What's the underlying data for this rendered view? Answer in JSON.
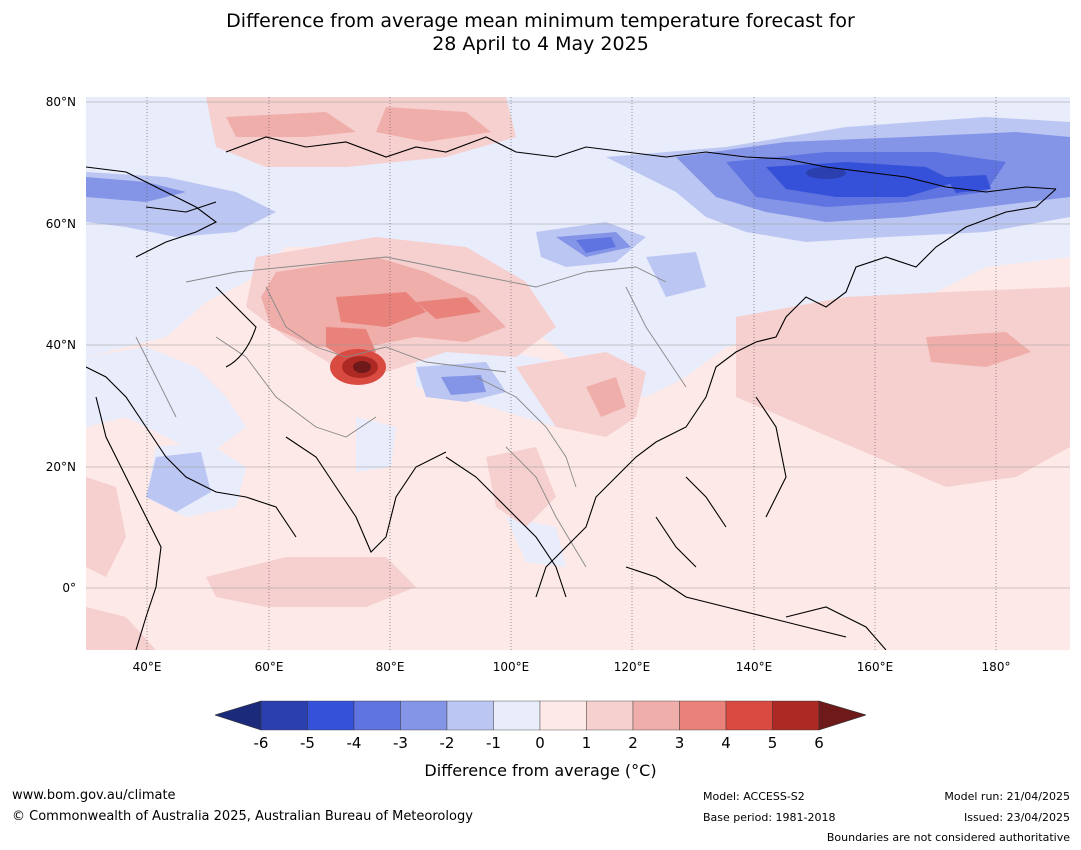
{
  "title_line1": "Difference from average mean minimum temperature forecast for",
  "title_line2": "28 April to 4 May 2025",
  "lat_labels": [
    "80°N",
    "60°N",
    "40°N",
    "20°N",
    "0°"
  ],
  "lon_labels": [
    "40°E",
    "60°E",
    "80°E",
    "100°E",
    "120°E",
    "140°E",
    "160°E",
    "180°"
  ],
  "colorbar": {
    "ticks": [
      "-6",
      "-5",
      "-4",
      "-3",
      "-2",
      "-1",
      "0",
      "1",
      "2",
      "3",
      "4",
      "5",
      "6"
    ],
    "colors": [
      "#1b2a7a",
      "#2c3fae",
      "#3551d9",
      "#5f74e0",
      "#8495e8",
      "#bcc6f2",
      "#e8ecfb",
      "#fce9e8",
      "#f6d0cf",
      "#efaeaa",
      "#e8827b",
      "#d94a40",
      "#ad2a24",
      "#6e1a1a"
    ],
    "label": "Difference from average (°C)"
  },
  "footer": {
    "website": "www.bom.gov.au/climate",
    "copyright": "© Commonwealth of Australia 2025, Australian Bureau of Meteorology",
    "model": "Model: ACCESS-S2",
    "base_period": "Base period: 1981-2018",
    "model_run": "Model run: 21/04/2025",
    "issued": "Issued: 23/04/2025",
    "disclaimer": "Boundaries are not considered authoritative"
  }
}
